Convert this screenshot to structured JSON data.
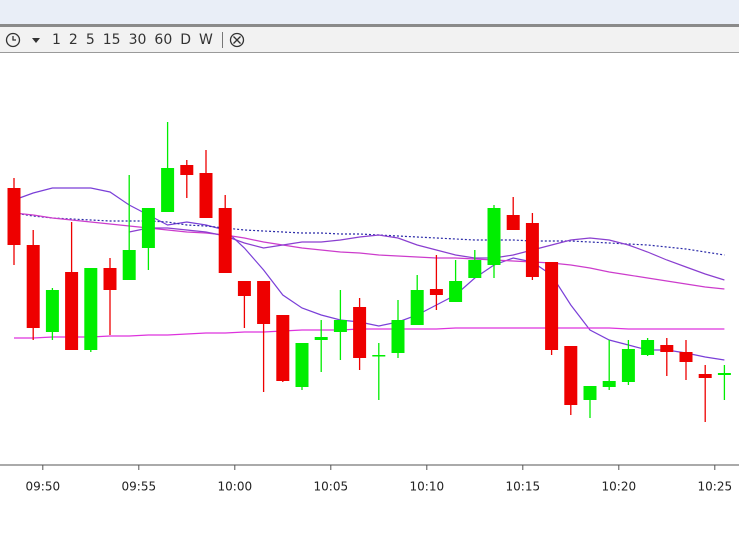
{
  "toolbar": {
    "intervals": [
      "1",
      "2",
      "5",
      "15",
      "30",
      "60",
      "D",
      "W"
    ]
  },
  "chart_data": {
    "type": "candlestick",
    "categories": [
      null,
      null,
      "09:50",
      null,
      null,
      null,
      null,
      "09:55",
      null,
      null,
      null,
      null,
      "10:00",
      null,
      null,
      null,
      null,
      "10:05",
      null,
      null,
      null,
      null,
      "10:10",
      null,
      null,
      null,
      null,
      "10:15",
      null,
      null,
      null,
      null,
      "10:20",
      null,
      null,
      null,
      null,
      "10:25"
    ],
    "open": [
      277,
      220,
      133,
      193,
      115,
      197,
      185,
      217,
      253,
      300,
      292,
      257,
      184,
      184,
      150,
      78,
      125,
      133,
      158,
      109,
      112,
      140,
      176,
      163,
      187,
      200,
      250,
      242,
      203,
      119,
      65,
      78,
      83,
      110,
      120,
      113,
      91,
      90
    ],
    "high": [
      287,
      235,
      177,
      243,
      197,
      207,
      290,
      257,
      343,
      305,
      315,
      270,
      184,
      184,
      150,
      122,
      145,
      175,
      167,
      122,
      165,
      190,
      210,
      205,
      215,
      260,
      268,
      252,
      203,
      119,
      79,
      125,
      125,
      127,
      127,
      125,
      100,
      100
    ],
    "low": [
      200,
      125,
      125,
      115,
      113,
      130,
      185,
      195,
      253,
      267,
      247,
      192,
      137,
      73,
      83,
      75,
      93,
      105,
      95,
      65,
      107,
      140,
      155,
      163,
      187,
      187,
      235,
      185,
      110,
      50,
      47,
      75,
      80,
      109,
      89,
      85,
      43,
      65
    ],
    "close": [
      220,
      137,
      175,
      115,
      197,
      175,
      215,
      257,
      297,
      290,
      247,
      192,
      169,
      141,
      84,
      122,
      128,
      145,
      107,
      110,
      145,
      175,
      170,
      184,
      205,
      257,
      235,
      188,
      115,
      60,
      79,
      84,
      116,
      125,
      113,
      103,
      87,
      92
    ],
    "up_color": "#00ee00",
    "down_color": "#ee0000",
    "overlays": [
      {
        "color": "#7a3fd8",
        "style": "solid",
        "values": [
          265,
          272,
          277,
          277,
          277,
          273,
          260,
          250,
          240,
          243,
          240,
          235,
          217,
          195,
          170,
          157,
          150,
          145,
          143,
          139,
          143,
          150,
          160,
          170,
          187,
          200,
          207,
          203,
          190,
          160,
          135,
          125,
          120,
          115,
          115,
          112,
          108,
          105
        ]
      },
      {
        "color": "#2a2aa8",
        "style": "dotted",
        "values": [
          252,
          249,
          247,
          246,
          245,
          244,
          244,
          244,
          243,
          240,
          239,
          237,
          235,
          234,
          233,
          232,
          232,
          231,
          231,
          230,
          229,
          228,
          227,
          226,
          225,
          225,
          225,
          224,
          224,
          224,
          223,
          222,
          221,
          220,
          218,
          216,
          213,
          210
        ]
      },
      {
        "color": "#cc3ccc",
        "style": "solid",
        "values": [
          252,
          250,
          247,
          245,
          243,
          241,
          239,
          237,
          235,
          233,
          232,
          230,
          227,
          223,
          220,
          217,
          215,
          213,
          212,
          210,
          209,
          208,
          207,
          207,
          206,
          205,
          204,
          203,
          202,
          200,
          197,
          193,
          190,
          187,
          184,
          181,
          178,
          176
        ]
      },
      {
        "color": "#dd33dd",
        "style": "solid",
        "values": [
          127,
          127,
          128,
          128,
          128,
          129,
          129,
          130,
          130,
          131,
          132,
          132,
          133,
          133,
          134,
          135,
          135,
          135,
          136,
          136,
          136,
          136,
          136,
          137,
          137,
          137,
          137,
          137,
          137,
          137,
          137,
          137,
          136,
          136,
          136,
          136,
          136,
          136
        ]
      },
      {
        "color": "#8a3fd0",
        "style": "solid",
        "values": [
          null,
          null,
          null,
          null,
          null,
          null,
          233,
          237,
          237,
          235,
          233,
          229,
          222,
          217,
          220,
          223,
          223,
          225,
          228,
          230,
          227,
          220,
          215,
          210,
          207,
          207,
          210,
          215,
          220,
          225,
          227,
          225,
          220,
          213,
          205,
          198,
          191,
          185
        ]
      }
    ],
    "ylim": [
      0,
      410
    ]
  }
}
